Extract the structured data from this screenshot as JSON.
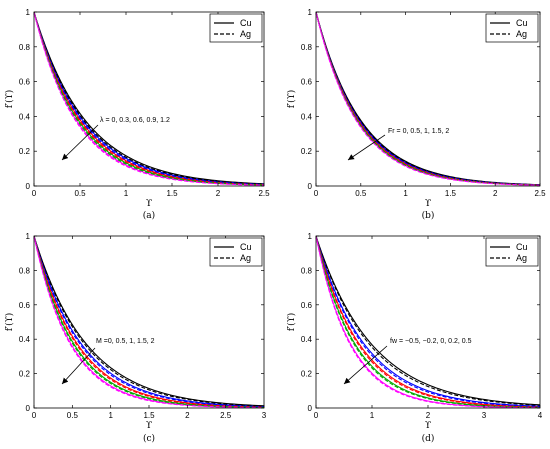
{
  "figure": {
    "legend": [
      {
        "name": "Cu",
        "color": "#000000",
        "dash": "solid"
      },
      {
        "name": "Ag",
        "color": "#000000",
        "dash": "dashed"
      }
    ],
    "series_colors": [
      "#000000",
      "#0000ff",
      "#ff0000",
      "#00aa00",
      "#ff00ff"
    ]
  },
  "chart_data": [
    {
      "type": "line",
      "caption": "(a)",
      "xlabel": "ϒ",
      "ylabel": "f′(ϒ)",
      "xlim": [
        0,
        2.5
      ],
      "ylim": [
        0,
        1
      ],
      "xticks": [
        "0",
        "0.5",
        "1",
        "1.5",
        "2",
        "2.5"
      ],
      "yticks": [
        "0",
        "0.2",
        "0.4",
        "0.6",
        "0.8",
        "1"
      ],
      "legend_position": "top-right",
      "annotation": "λ = 0, 0.3, 0.6, 0.9, 1.2",
      "parameter_values": [
        0,
        0.3,
        0.6,
        0.9,
        1.2
      ],
      "decay_rates": {
        "Cu": [
          1.75,
          1.84,
          1.93,
          2.02,
          2.12
        ],
        "Ag": [
          1.8,
          1.89,
          1.98,
          2.07,
          2.17
        ]
      }
    },
    {
      "type": "line",
      "caption": "(b)",
      "xlabel": "ϒ",
      "ylabel": "f′(ϒ)",
      "xlim": [
        0,
        2.5
      ],
      "ylim": [
        0,
        1
      ],
      "xticks": [
        "0",
        "0.5",
        "1",
        "1.5",
        "2",
        "2.5"
      ],
      "yticks": [
        "0",
        "0.2",
        "0.4",
        "0.6",
        "0.8",
        "1"
      ],
      "legend_position": "top-right",
      "annotation": "Fr = 0, 0.5, 1, 1.5, 2",
      "parameter_values": [
        0,
        0.5,
        1,
        1.5,
        2
      ],
      "decay_rates": {
        "Cu": [
          1.95,
          2.0,
          2.05,
          2.1,
          2.15
        ],
        "Ag": [
          1.98,
          2.03,
          2.08,
          2.13,
          2.18
        ]
      }
    },
    {
      "type": "line",
      "caption": "(c)",
      "xlabel": "ϒ",
      "ylabel": "f′(ϒ)",
      "xlim": [
        0,
        3
      ],
      "ylim": [
        0,
        1
      ],
      "xticks": [
        "0",
        "0.5",
        "1",
        "1.5",
        "2",
        "2.5",
        "3"
      ],
      "yticks": [
        "0",
        "0.2",
        "0.4",
        "0.6",
        "0.8",
        "1"
      ],
      "legend_position": "top-right",
      "annotation": "M =0, 0.5, 1, 1.5, 2",
      "parameter_values": [
        0,
        0.5,
        1,
        1.5,
        2
      ],
      "decay_rates": {
        "Cu": [
          1.45,
          1.6,
          1.75,
          1.9,
          2.05
        ],
        "Ag": [
          1.5,
          1.65,
          1.8,
          1.95,
          2.1
        ]
      }
    },
    {
      "type": "line",
      "caption": "(d)",
      "xlabel": "ϒ",
      "ylabel": "f′(ϒ)",
      "xlim": [
        0,
        4
      ],
      "ylim": [
        0,
        1
      ],
      "xticks": [
        "0",
        "1",
        "2",
        "3",
        "4"
      ],
      "yticks": [
        "0",
        "0.2",
        "0.4",
        "0.6",
        "0.8",
        "1"
      ],
      "legend_position": "top-right",
      "annotation": "fw = −0.5, −0.2, 0, 0.2, 0.5",
      "parameter_values": [
        -0.5,
        -0.2,
        0,
        0.2,
        0.5
      ],
      "decay_rates": {
        "Cu": [
          1.0,
          1.15,
          1.28,
          1.42,
          1.6
        ],
        "Ag": [
          1.04,
          1.19,
          1.32,
          1.46,
          1.64
        ]
      }
    }
  ]
}
